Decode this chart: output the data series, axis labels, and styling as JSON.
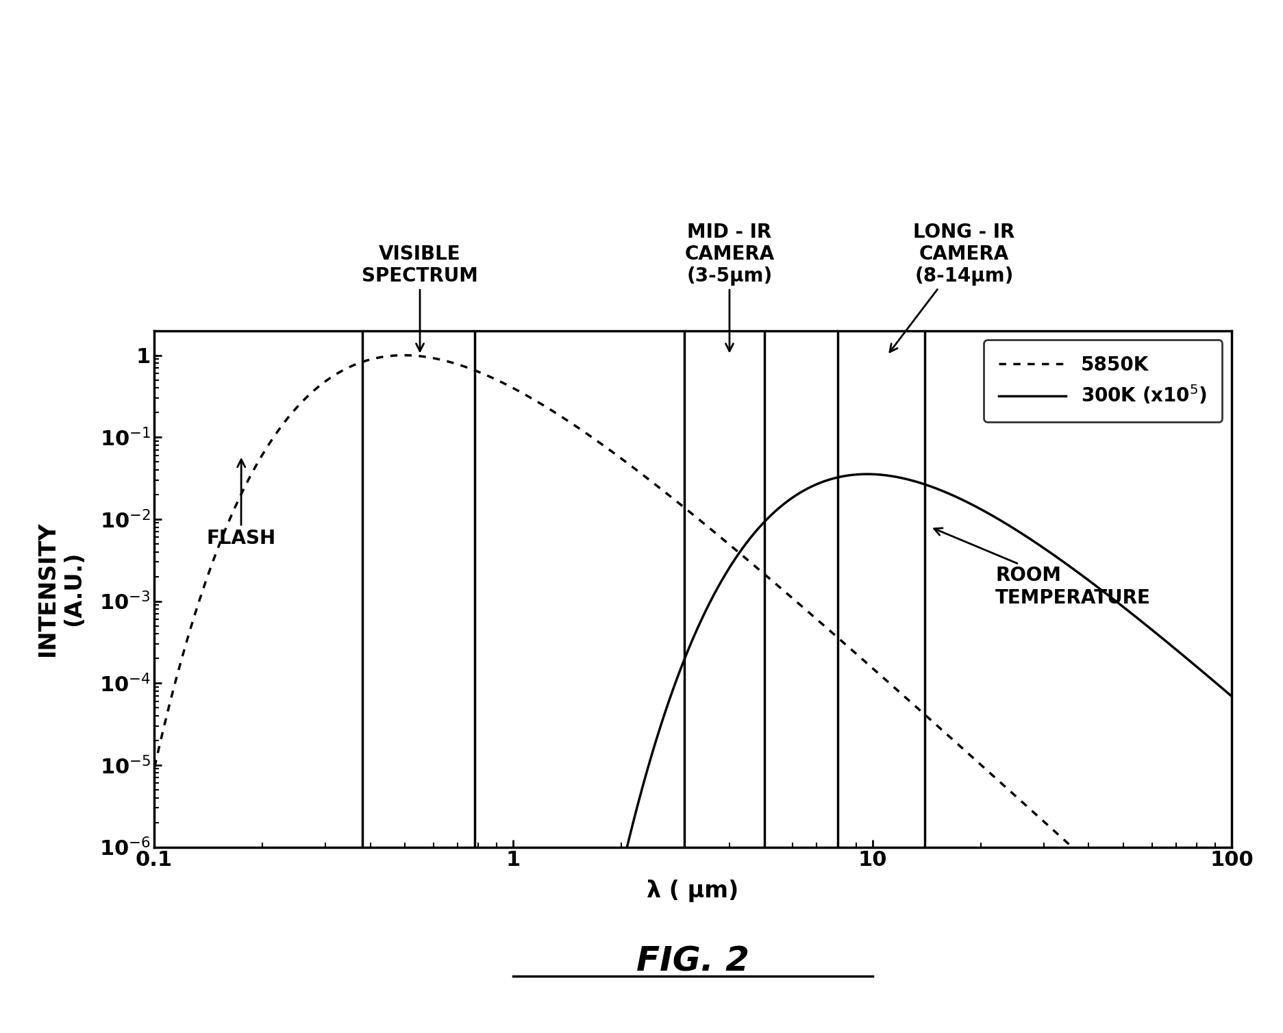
{
  "xlim": [
    0.1,
    100
  ],
  "ylim": [
    1e-06,
    2
  ],
  "xlabel": "λ ( μm)",
  "ylabel": "INTENSITY\n(A.U.)",
  "fig_title": "FIG. 2",
  "background_color": "#ffffff",
  "regions": {
    "visible": [
      0.38,
      0.78
    ],
    "mid_ir": [
      3.0,
      5.0
    ],
    "long_ir": [
      8.0,
      14.0
    ]
  },
  "yticks": [
    1,
    0.1,
    0.01,
    0.001,
    0.0001,
    1e-05,
    1e-06
  ],
  "ytick_labels": [
    "1",
    "10$^{-1}$",
    "10$^{-2}$",
    "10$^{-3}$",
    "10$^{-4}$",
    "10$^{-5}$",
    "10$^{-6}$"
  ],
  "xticks": [
    0.1,
    1,
    10,
    100
  ],
  "xtick_labels": [
    "0.1",
    "1",
    "10",
    "100"
  ]
}
